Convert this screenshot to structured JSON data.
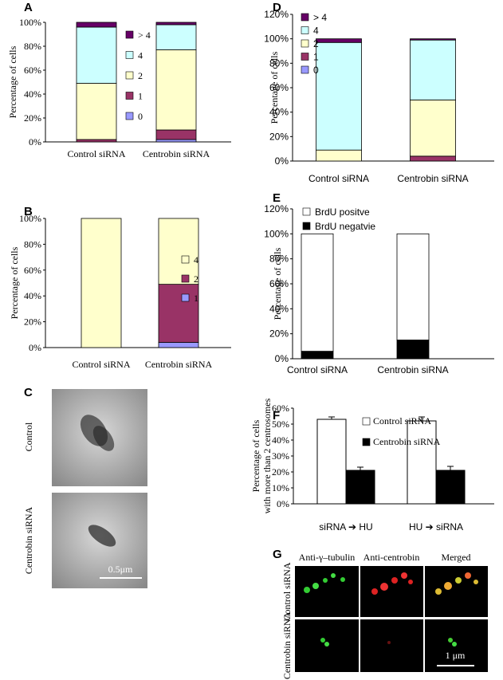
{
  "chart_data": [
    {
      "panel": "A",
      "type": "stacked_bar",
      "ylabel": "Percentage of cells",
      "categories": [
        "Control siRNA",
        "Centrobin siRNA"
      ],
      "series": [
        {
          "name": "0",
          "color": "#9999ff",
          "values": [
            0,
            2
          ]
        },
        {
          "name": "1",
          "color": "#993366",
          "values": [
            2,
            8
          ]
        },
        {
          "name": "2",
          "color": "#ffffcc",
          "values": [
            47,
            67
          ]
        },
        {
          "name": "4",
          "color": "#ccffff",
          "values": [
            47,
            21
          ]
        },
        {
          "name": "> 4",
          "color": "#660066",
          "values": [
            4,
            2
          ]
        }
      ],
      "ylim": [
        0,
        100
      ],
      "yticks": [
        {
          "value": 0,
          "label": "0%"
        },
        {
          "value": 20,
          "label": "20%"
        },
        {
          "value": 40,
          "label": "40%"
        },
        {
          "value": 60,
          "label": "60%"
        },
        {
          "value": 80,
          "label": "80%"
        },
        {
          "value": 100,
          "label": "100%"
        }
      ]
    },
    {
      "panel": "B",
      "type": "stacked_bar",
      "ylabel": "Percentage of cells",
      "categories": [
        "Control siRNA",
        "Centrobin siRNA"
      ],
      "series": [
        {
          "name": "1",
          "color": "#9999ff",
          "values": [
            0,
            4
          ]
        },
        {
          "name": "2",
          "color": "#993366",
          "values": [
            0,
            45
          ]
        },
        {
          "name": "4",
          "color": "#ffffcc",
          "values": [
            100,
            51
          ]
        }
      ],
      "ylim": [
        0,
        100
      ],
      "yticks": [
        {
          "value": 0,
          "label": "0%"
        },
        {
          "value": 20,
          "label": "20%"
        },
        {
          "value": 40,
          "label": "40%"
        },
        {
          "value": 60,
          "label": "60%"
        },
        {
          "value": 80,
          "label": "80%"
        },
        {
          "value": 100,
          "label": "100%"
        }
      ]
    },
    {
      "panel": "D",
      "type": "stacked_bar",
      "ylabel": "Percentage of cells",
      "categories": [
        "Control siRNA",
        "Centrobin siRNA"
      ],
      "series": [
        {
          "name": "0",
          "color": "#9999ff",
          "values": [
            0,
            0
          ]
        },
        {
          "name": "1",
          "color": "#993366",
          "values": [
            0,
            4
          ]
        },
        {
          "name": "2",
          "color": "#ffffcc",
          "values": [
            9,
            46
          ]
        },
        {
          "name": "4",
          "color": "#ccffff",
          "values": [
            88,
            49
          ]
        },
        {
          "name": "> 4",
          "color": "#660066",
          "values": [
            3,
            1
          ]
        }
      ],
      "ylim": [
        0,
        120
      ],
      "yticks": [
        {
          "value": 0,
          "label": "0%"
        },
        {
          "value": 20,
          "label": "20%"
        },
        {
          "value": 40,
          "label": "40%"
        },
        {
          "value": 60,
          "label": "60%"
        },
        {
          "value": 80,
          "label": "80%"
        },
        {
          "value": 100,
          "label": "100%"
        },
        {
          "value": 120,
          "label": "120%"
        }
      ]
    },
    {
      "panel": "E",
      "type": "stacked_bar",
      "ylabel": "Percentage of cells",
      "categories": [
        "Control siRNA",
        "Centrobin siRNA"
      ],
      "series": [
        {
          "name": "BrdU negatvie",
          "color": "#000000",
          "values": [
            6,
            15
          ]
        },
        {
          "name": "BrdU positve",
          "color": "#ffffff",
          "values": [
            94,
            85
          ]
        }
      ],
      "ylim": [
        0,
        120
      ],
      "yticks": [
        {
          "value": 0,
          "label": "0%"
        },
        {
          "value": 20,
          "label": "20%"
        },
        {
          "value": 40,
          "label": "40%"
        },
        {
          "value": 60,
          "label": "60%"
        },
        {
          "value": 80,
          "label": "80%"
        },
        {
          "value": 100,
          "label": "100%"
        },
        {
          "value": 120,
          "label": "120%"
        }
      ]
    },
    {
      "panel": "F",
      "type": "grouped_bar",
      "ylabel": [
        "Percentage of cells",
        "with more than 2 centrosomes"
      ],
      "categories": [
        "siRNA ➔ HU",
        "HU ➔ siRNA"
      ],
      "series": [
        {
          "name": "Control siRNA",
          "color": "#ffffff",
          "values": [
            53,
            52
          ],
          "errors": [
            1.5,
            2.5
          ]
        },
        {
          "name": "Centrobin siRNA",
          "color": "#000000",
          "values": [
            21,
            21
          ],
          "errors": [
            2,
            2.5
          ]
        }
      ],
      "ylim": [
        0,
        60
      ],
      "yticks": [
        {
          "value": 0,
          "label": "0%"
        },
        {
          "value": 10,
          "label": "10%"
        },
        {
          "value": 20,
          "label": "20%"
        },
        {
          "value": 30,
          "label": "30%"
        },
        {
          "value": 40,
          "label": "40%"
        },
        {
          "value": 50,
          "label": "50%"
        },
        {
          "value": 60,
          "label": "60%"
        }
      ]
    }
  ],
  "images": [
    {
      "panel": "C",
      "row_labels": [
        "Control",
        "Centrobin siRNA"
      ],
      "scale_bar": "0.5μm"
    },
    {
      "panel": "G",
      "column_labels": [
        "Anti-γ–tubulin",
        "Anti-centrobin",
        "Merged"
      ],
      "row_labels": [
        "Control siRNA",
        "Centrobin siRNA"
      ],
      "scale_bar": "1 μm"
    }
  ]
}
